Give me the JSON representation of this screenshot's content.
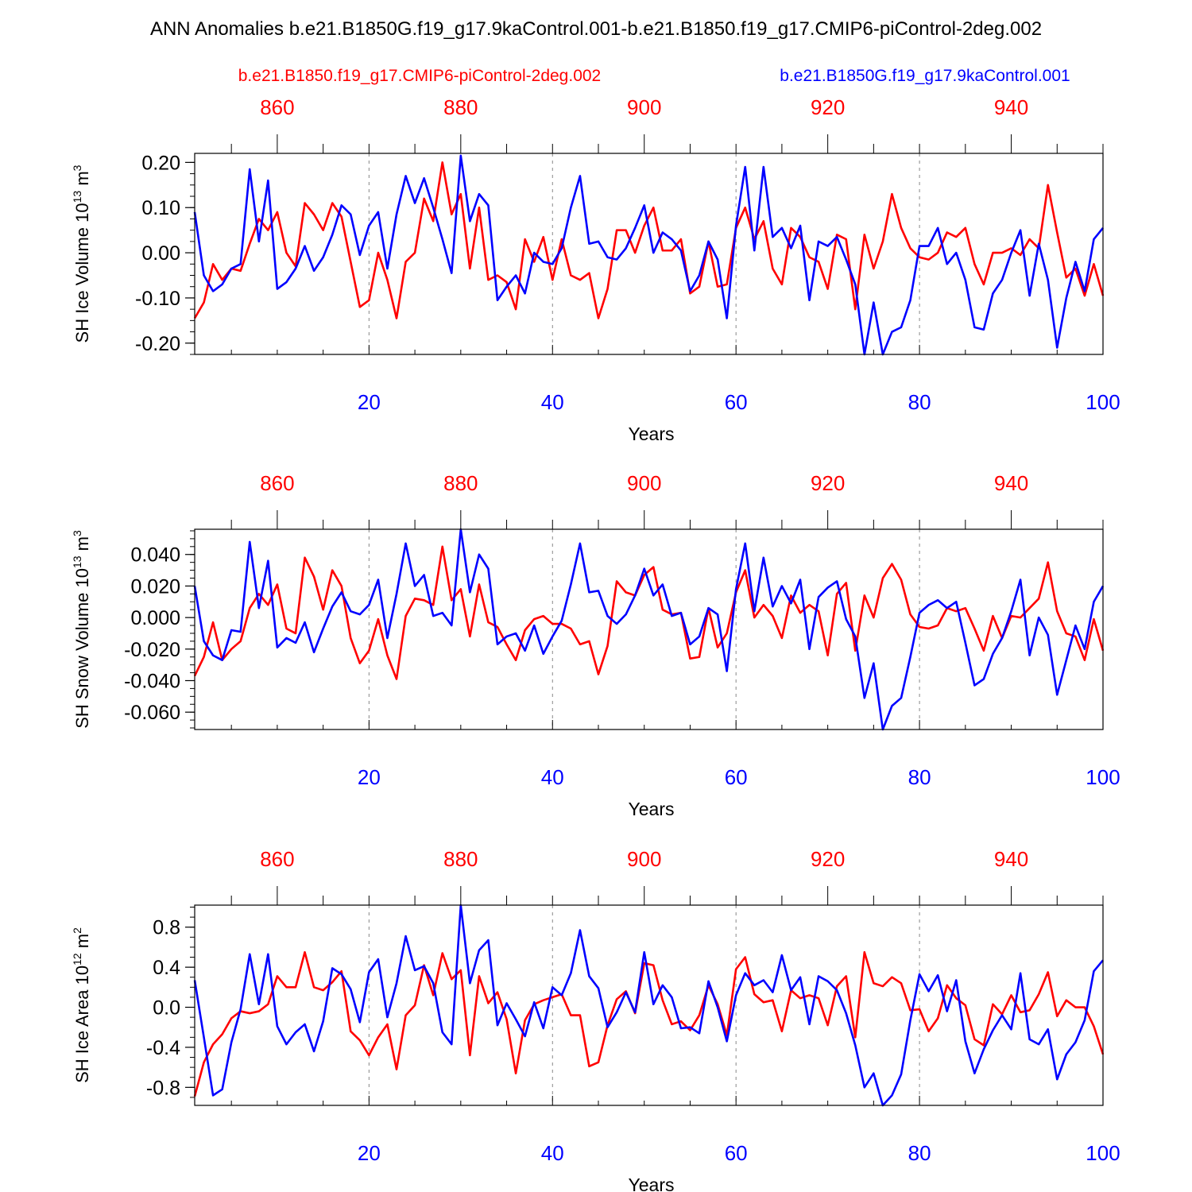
{
  "title": "ANN Anomalies b.e21.B1850G.f19_g17.9kaControl.001-b.e21.B1850.f19_g17.CMIP6-piControl-2deg.002",
  "legend": {
    "red_case": "b.e21.B1850.f19_g17.CMIP6-piControl-2deg.002",
    "blue_case": "b.e21.B1850G.f19_g17.9kaControl.001"
  },
  "colors": {
    "red": "#ff0000",
    "blue": "#0000ff",
    "axis": "#000000",
    "grid": "#888888"
  },
  "chart_data": [
    {
      "type": "line",
      "ylabel": "SH Ice Volume 10",
      "ylabel_exp": "13",
      "ylabel_unit": " m",
      "ylabel_unit_exp": "3",
      "xlabel": "Years",
      "xlim": [
        1,
        100
      ],
      "ylim": [
        -0.225,
        0.22
      ],
      "yticks": [
        -0.2,
        -0.1,
        0.0,
        0.1,
        0.2
      ],
      "ytick_labels": [
        "-0.20",
        "-0.10",
        "0.00",
        "0.10",
        "0.20"
      ],
      "yminor_step": 0.025,
      "xticks": [
        20,
        40,
        60,
        80,
        100
      ],
      "xtick_labels": [
        "20",
        "40",
        "60",
        "80",
        "100"
      ],
      "top_ticks": [
        860,
        880,
        900,
        920,
        940
      ],
      "top_tick_labels": [
        "860",
        "880",
        "900",
        "920",
        "940"
      ],
      "top_offset": 850,
      "grid_x": [
        20,
        40,
        60,
        80
      ],
      "series": [
        {
          "name": "b.e21.B1850.f19_g17.CMIP6-piControl-2deg.002",
          "color": "red",
          "values": [
            -0.145,
            -0.11,
            -0.025,
            -0.06,
            -0.035,
            -0.04,
            0.02,
            0.075,
            0.05,
            0.09,
            0.0,
            -0.03,
            0.11,
            0.085,
            0.05,
            0.11,
            0.08,
            -0.02,
            -0.12,
            -0.105,
            0.0,
            -0.06,
            -0.145,
            -0.02,
            0.0,
            0.12,
            0.07,
            0.2,
            0.085,
            0.13,
            -0.035,
            0.1,
            -0.06,
            -0.05,
            -0.065,
            -0.125,
            0.03,
            -0.02,
            0.035,
            -0.06,
            0.03,
            -0.05,
            -0.06,
            -0.045,
            -0.145,
            -0.08,
            0.05,
            0.05,
            0.0,
            0.06,
            0.1,
            0.005,
            0.005,
            0.03,
            -0.09,
            -0.075,
            0.025,
            -0.075,
            -0.07,
            0.055,
            0.1,
            0.03,
            0.07,
            -0.035,
            -0.07,
            0.055,
            0.035,
            -0.01,
            -0.02,
            -0.08,
            0.04,
            0.03,
            -0.125,
            0.04,
            -0.035,
            0.025,
            0.13,
            0.055,
            0.01,
            -0.01,
            -0.015,
            0.0,
            0.045,
            0.035,
            0.055,
            -0.025,
            -0.07,
            0.0,
            0.0,
            0.01,
            -0.005,
            0.03,
            0.01,
            0.15,
            0.045,
            -0.055,
            -0.035,
            -0.095,
            -0.025,
            -0.095
          ]
        },
        {
          "name": "b.e21.B1850G.f19_g17.9kaControl.001",
          "color": "blue",
          "values": [
            0.09,
            -0.05,
            -0.085,
            -0.07,
            -0.035,
            -0.025,
            0.185,
            0.025,
            0.16,
            -0.08,
            -0.065,
            -0.035,
            0.015,
            -0.04,
            -0.01,
            0.04,
            0.105,
            0.085,
            -0.005,
            0.06,
            0.09,
            -0.035,
            0.085,
            0.17,
            0.11,
            0.165,
            0.1,
            0.03,
            -0.045,
            0.215,
            0.07,
            0.13,
            0.105,
            -0.105,
            -0.075,
            -0.05,
            -0.09,
            0.0,
            -0.02,
            -0.025,
            0.01,
            0.1,
            0.17,
            0.02,
            0.025,
            -0.01,
            -0.015,
            0.01,
            0.055,
            0.105,
            0.0,
            0.045,
            0.03,
            0.005,
            -0.085,
            -0.05,
            0.025,
            -0.015,
            -0.145,
            0.06,
            0.19,
            0.005,
            0.19,
            0.035,
            0.055,
            0.01,
            0.06,
            -0.105,
            0.025,
            0.015,
            0.035,
            -0.015,
            -0.07,
            -0.225,
            -0.11,
            -0.225,
            -0.175,
            -0.165,
            -0.105,
            0.015,
            0.015,
            0.055,
            -0.025,
            0.0,
            -0.06,
            -0.165,
            -0.17,
            -0.09,
            -0.06,
            0.0,
            0.05,
            -0.095,
            0.02,
            -0.06,
            -0.21,
            -0.1,
            -0.02,
            -0.085,
            0.03,
            0.055
          ]
        }
      ]
    },
    {
      "type": "line",
      "ylabel": "SH Snow Volume 10",
      "ylabel_exp": "13",
      "ylabel_unit": " m",
      "ylabel_unit_exp": "3",
      "xlabel": "Years",
      "xlim": [
        1,
        100
      ],
      "ylim": [
        -0.071,
        0.056
      ],
      "yticks": [
        -0.06,
        -0.04,
        -0.02,
        0.0,
        0.02,
        0.04
      ],
      "ytick_labels": [
        "-0.060",
        "-0.040",
        "-0.020",
        "0.000",
        "0.020",
        "0.040"
      ],
      "yminor_step": 0.005,
      "xticks": [
        20,
        40,
        60,
        80,
        100
      ],
      "xtick_labels": [
        "20",
        "40",
        "60",
        "80",
        "100"
      ],
      "top_ticks": [
        860,
        880,
        900,
        920,
        940
      ],
      "top_tick_labels": [
        "860",
        "880",
        "900",
        "920",
        "940"
      ],
      "top_offset": 850,
      "grid_x": [
        20,
        40,
        60,
        80
      ],
      "series": [
        {
          "name": "b.e21.B1850.f19_g17.CMIP6-piControl-2deg.002",
          "color": "red",
          "values": [
            -0.037,
            -0.025,
            -0.003,
            -0.027,
            -0.02,
            -0.015,
            0.006,
            0.015,
            0.008,
            0.021,
            -0.007,
            -0.01,
            0.038,
            0.026,
            0.005,
            0.03,
            0.02,
            -0.013,
            -0.029,
            -0.021,
            -0.001,
            -0.024,
            -0.039,
            0.001,
            0.012,
            0.011,
            0.008,
            0.045,
            0.011,
            0.018,
            -0.012,
            0.021,
            -0.003,
            -0.006,
            -0.017,
            -0.027,
            -0.008,
            -0.001,
            0.001,
            -0.004,
            -0.004,
            -0.007,
            -0.017,
            -0.015,
            -0.036,
            -0.018,
            0.023,
            0.016,
            0.014,
            0.027,
            0.032,
            0.005,
            0.002,
            0.003,
            -0.026,
            -0.025,
            0.006,
            -0.019,
            -0.01,
            0.016,
            0.03,
            0.0,
            0.008,
            0.001,
            -0.013,
            0.014,
            0.003,
            0.008,
            0.004,
            -0.024,
            0.015,
            0.022,
            -0.021,
            0.014,
            0.0,
            0.025,
            0.034,
            0.024,
            0.002,
            -0.006,
            -0.007,
            -0.005,
            0.006,
            0.004,
            0.006,
            -0.007,
            -0.021,
            0.001,
            -0.013,
            0.001,
            0.0,
            0.006,
            0.012,
            0.035,
            0.004,
            -0.01,
            -0.012,
            -0.027,
            -0.001,
            -0.021
          ]
        },
        {
          "name": "b.e21.B1850G.f19_g17.9kaControl.001",
          "color": "blue",
          "values": [
            0.02,
            -0.015,
            -0.024,
            -0.027,
            -0.008,
            -0.009,
            0.048,
            0.006,
            0.036,
            -0.019,
            -0.013,
            -0.016,
            -0.003,
            -0.022,
            -0.007,
            0.007,
            0.016,
            0.004,
            0.002,
            0.008,
            0.024,
            -0.013,
            0.015,
            0.047,
            0.02,
            0.027,
            0.001,
            0.003,
            -0.005,
            0.056,
            0.016,
            0.04,
            0.031,
            -0.017,
            -0.012,
            -0.01,
            -0.021,
            -0.005,
            -0.023,
            -0.012,
            -0.002,
            0.021,
            0.047,
            0.016,
            0.017,
            0.001,
            -0.004,
            0.002,
            0.014,
            0.031,
            0.014,
            0.021,
            0.001,
            0.003,
            -0.017,
            -0.012,
            0.006,
            0.002,
            -0.034,
            0.018,
            0.047,
            0.004,
            0.038,
            0.007,
            0.02,
            0.009,
            0.024,
            -0.02,
            0.013,
            0.019,
            0.023,
            -0.001,
            -0.012,
            -0.051,
            -0.029,
            -0.071,
            -0.056,
            -0.051,
            -0.025,
            0.003,
            0.008,
            0.011,
            0.006,
            0.01,
            -0.016,
            -0.043,
            -0.039,
            -0.023,
            -0.013,
            0.004,
            0.024,
            -0.024,
            0.0,
            -0.011,
            -0.049,
            -0.027,
            -0.005,
            -0.02,
            0.01,
            0.02
          ]
        }
      ]
    },
    {
      "type": "line",
      "ylabel": "SH Ice Area 10",
      "ylabel_exp": "12",
      "ylabel_unit": " m",
      "ylabel_unit_exp": "2",
      "xlabel": "Years",
      "xlim": [
        1,
        100
      ],
      "ylim": [
        -0.98,
        1.02
      ],
      "yticks": [
        -0.8,
        -0.4,
        0.0,
        0.4,
        0.8
      ],
      "ytick_labels": [
        "-0.8",
        "-0.4",
        "0.0",
        "0.4",
        "0.8"
      ],
      "yminor_step": 0.1,
      "xticks": [
        20,
        40,
        60,
        80,
        100
      ],
      "xtick_labels": [
        "20",
        "40",
        "60",
        "80",
        "100"
      ],
      "top_ticks": [
        860,
        880,
        900,
        920,
        940
      ],
      "top_tick_labels": [
        "860",
        "880",
        "900",
        "920",
        "940"
      ],
      "top_offset": 850,
      "grid_x": [
        20,
        40,
        60,
        80
      ],
      "series": [
        {
          "name": "b.e21.B1850.f19_g17.CMIP6-piControl-2deg.002",
          "color": "red",
          "values": [
            -0.89,
            -0.55,
            -0.37,
            -0.27,
            -0.11,
            -0.04,
            -0.06,
            -0.04,
            0.03,
            0.31,
            0.2,
            0.2,
            0.55,
            0.2,
            0.17,
            0.25,
            0.36,
            -0.24,
            -0.33,
            -0.48,
            -0.3,
            -0.17,
            -0.62,
            -0.08,
            0.02,
            0.42,
            0.12,
            0.54,
            0.28,
            0.37,
            -0.48,
            0.31,
            0.04,
            0.15,
            -0.12,
            -0.66,
            -0.13,
            0.03,
            0.07,
            0.1,
            0.13,
            -0.08,
            -0.08,
            -0.59,
            -0.55,
            -0.18,
            0.08,
            0.16,
            -0.06,
            0.44,
            0.42,
            0.07,
            -0.17,
            -0.14,
            -0.23,
            -0.08,
            0.22,
            0.03,
            -0.28,
            0.38,
            0.5,
            0.13,
            0.05,
            0.07,
            -0.24,
            0.17,
            0.09,
            0.12,
            0.09,
            -0.18,
            0.21,
            0.31,
            -0.3,
            0.55,
            0.24,
            0.21,
            0.3,
            0.24,
            -0.03,
            -0.02,
            -0.24,
            -0.11,
            0.22,
            0.09,
            0.02,
            -0.32,
            -0.38,
            0.03,
            -0.07,
            0.12,
            -0.05,
            -0.03,
            0.13,
            0.35,
            -0.09,
            0.07,
            0.0,
            0.0,
            -0.19,
            -0.47
          ]
        },
        {
          "name": "b.e21.B1850G.f19_g17.9kaControl.001",
          "color": "blue",
          "values": [
            0.27,
            -0.3,
            -0.88,
            -0.82,
            -0.35,
            -0.02,
            0.53,
            0.03,
            0.53,
            -0.19,
            -0.37,
            -0.25,
            -0.17,
            -0.44,
            -0.14,
            0.39,
            0.33,
            0.18,
            -0.15,
            0.35,
            0.48,
            -0.1,
            0.24,
            0.71,
            0.37,
            0.41,
            0.24,
            -0.25,
            -0.37,
            1.02,
            0.24,
            0.57,
            0.67,
            -0.18,
            0.04,
            -0.12,
            -0.29,
            0.05,
            -0.21,
            0.2,
            0.12,
            0.34,
            0.77,
            0.31,
            0.19,
            -0.2,
            -0.05,
            0.15,
            -0.05,
            0.55,
            0.03,
            0.22,
            0.1,
            -0.21,
            -0.2,
            -0.26,
            0.26,
            0.0,
            -0.34,
            0.12,
            0.34,
            0.22,
            0.27,
            0.15,
            0.52,
            0.17,
            0.3,
            -0.17,
            0.31,
            0.26,
            0.17,
            -0.06,
            -0.38,
            -0.8,
            -0.66,
            -0.98,
            -0.88,
            -0.67,
            -0.13,
            0.33,
            0.16,
            0.32,
            -0.04,
            0.27,
            -0.34,
            -0.66,
            -0.42,
            -0.23,
            -0.08,
            -0.22,
            0.34,
            -0.32,
            -0.37,
            -0.22,
            -0.72,
            -0.47,
            -0.35,
            -0.13,
            0.36,
            0.47
          ]
        }
      ]
    }
  ]
}
